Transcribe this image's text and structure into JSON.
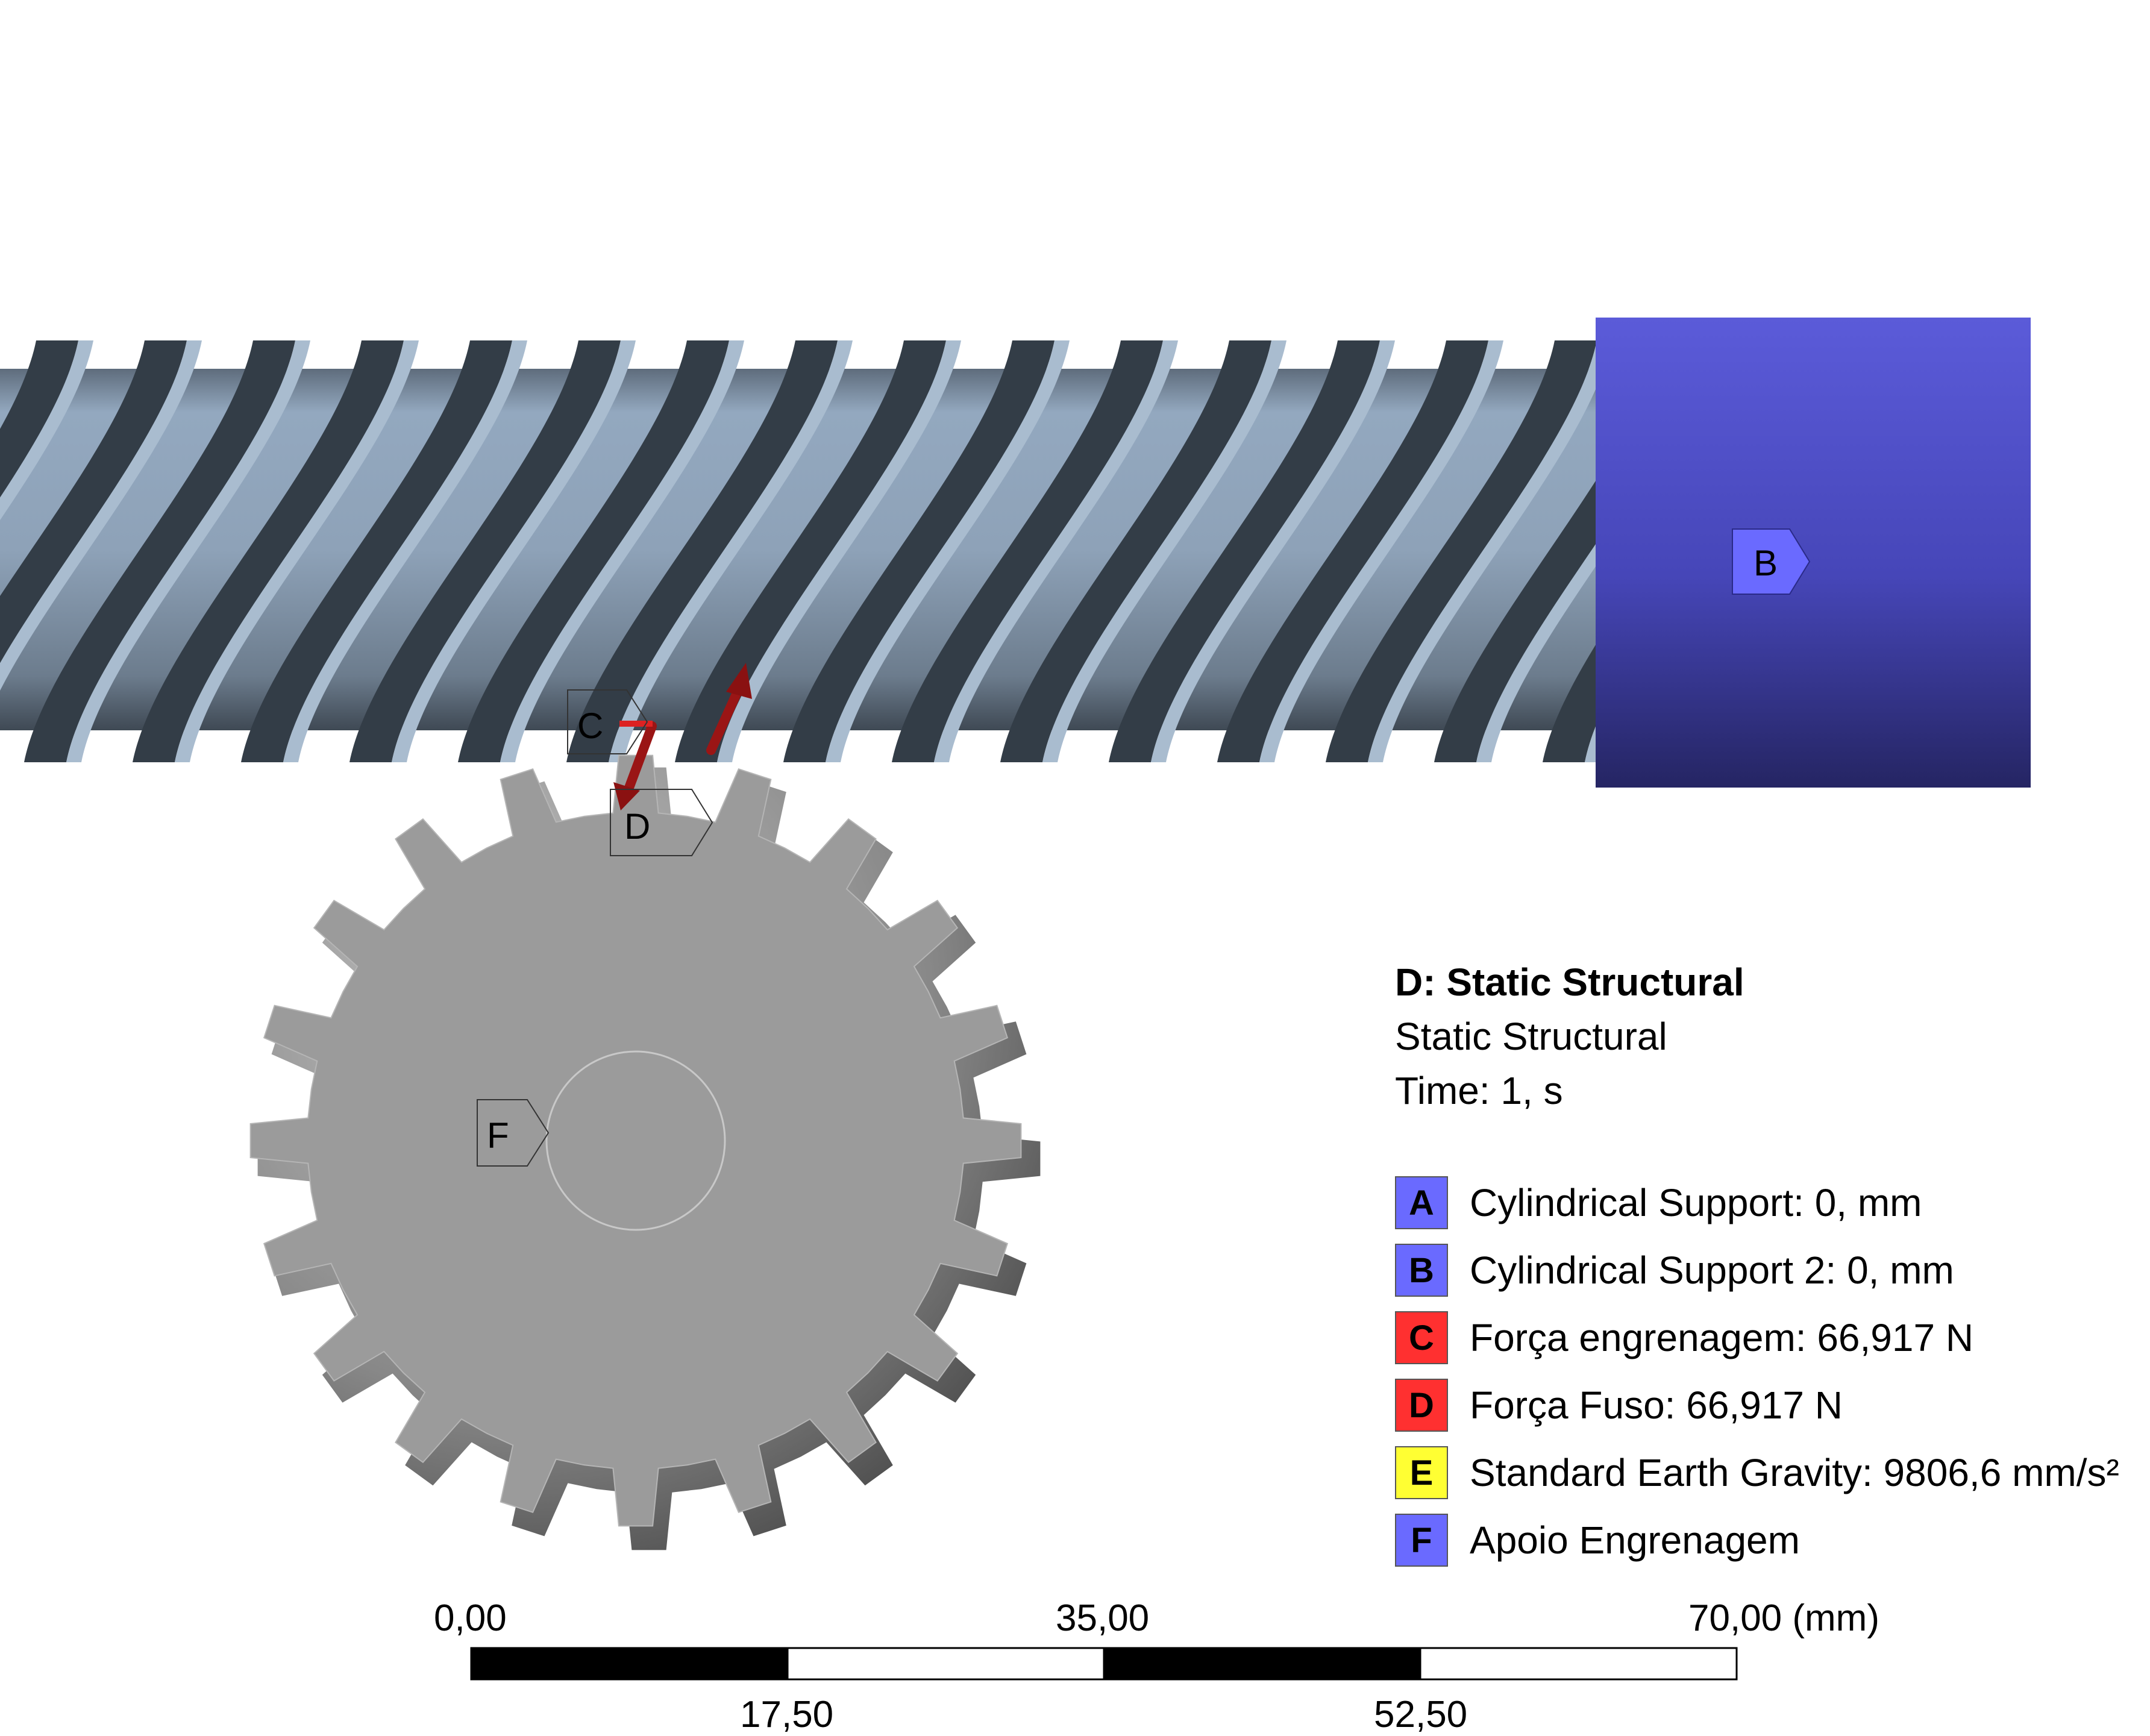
{
  "info": {
    "title": "D: Static Structural",
    "subtitle": "Static Structural",
    "time": "Time: 1, s"
  },
  "legend": [
    {
      "letter": "A",
      "text": "Cylindrical Support: 0, mm",
      "color": "#6a6aff"
    },
    {
      "letter": "B",
      "text": "Cylindrical Support 2: 0, mm",
      "color": "#6a6aff"
    },
    {
      "letter": "C",
      "text": "Força engrenagem: 66,917 N",
      "color": "#ff3030"
    },
    {
      "letter": "D",
      "text": "Força Fuso: 66,917 N",
      "color": "#ff3030"
    },
    {
      "letter": "E",
      "text": "Standard Earth Gravity: 9806,6 mm/s²",
      "color": "#ffff33"
    },
    {
      "letter": "F",
      "text": "Apoio Engrenagem",
      "color": "#6a6aff"
    }
  ],
  "tags": {
    "b": "B",
    "c": "C",
    "d": "D",
    "f": "F"
  },
  "scale": {
    "top_left": "0,00",
    "top_mid": "35,00",
    "top_right": "70,00 (mm)",
    "bottom_left": "17,50",
    "bottom_right": "52,50"
  },
  "colors": {
    "support": "#5050cc",
    "screw": "#8fa4ba",
    "screw_dark": "#333d47",
    "gear": "#9b9b9b",
    "force": "#9a1515"
  }
}
